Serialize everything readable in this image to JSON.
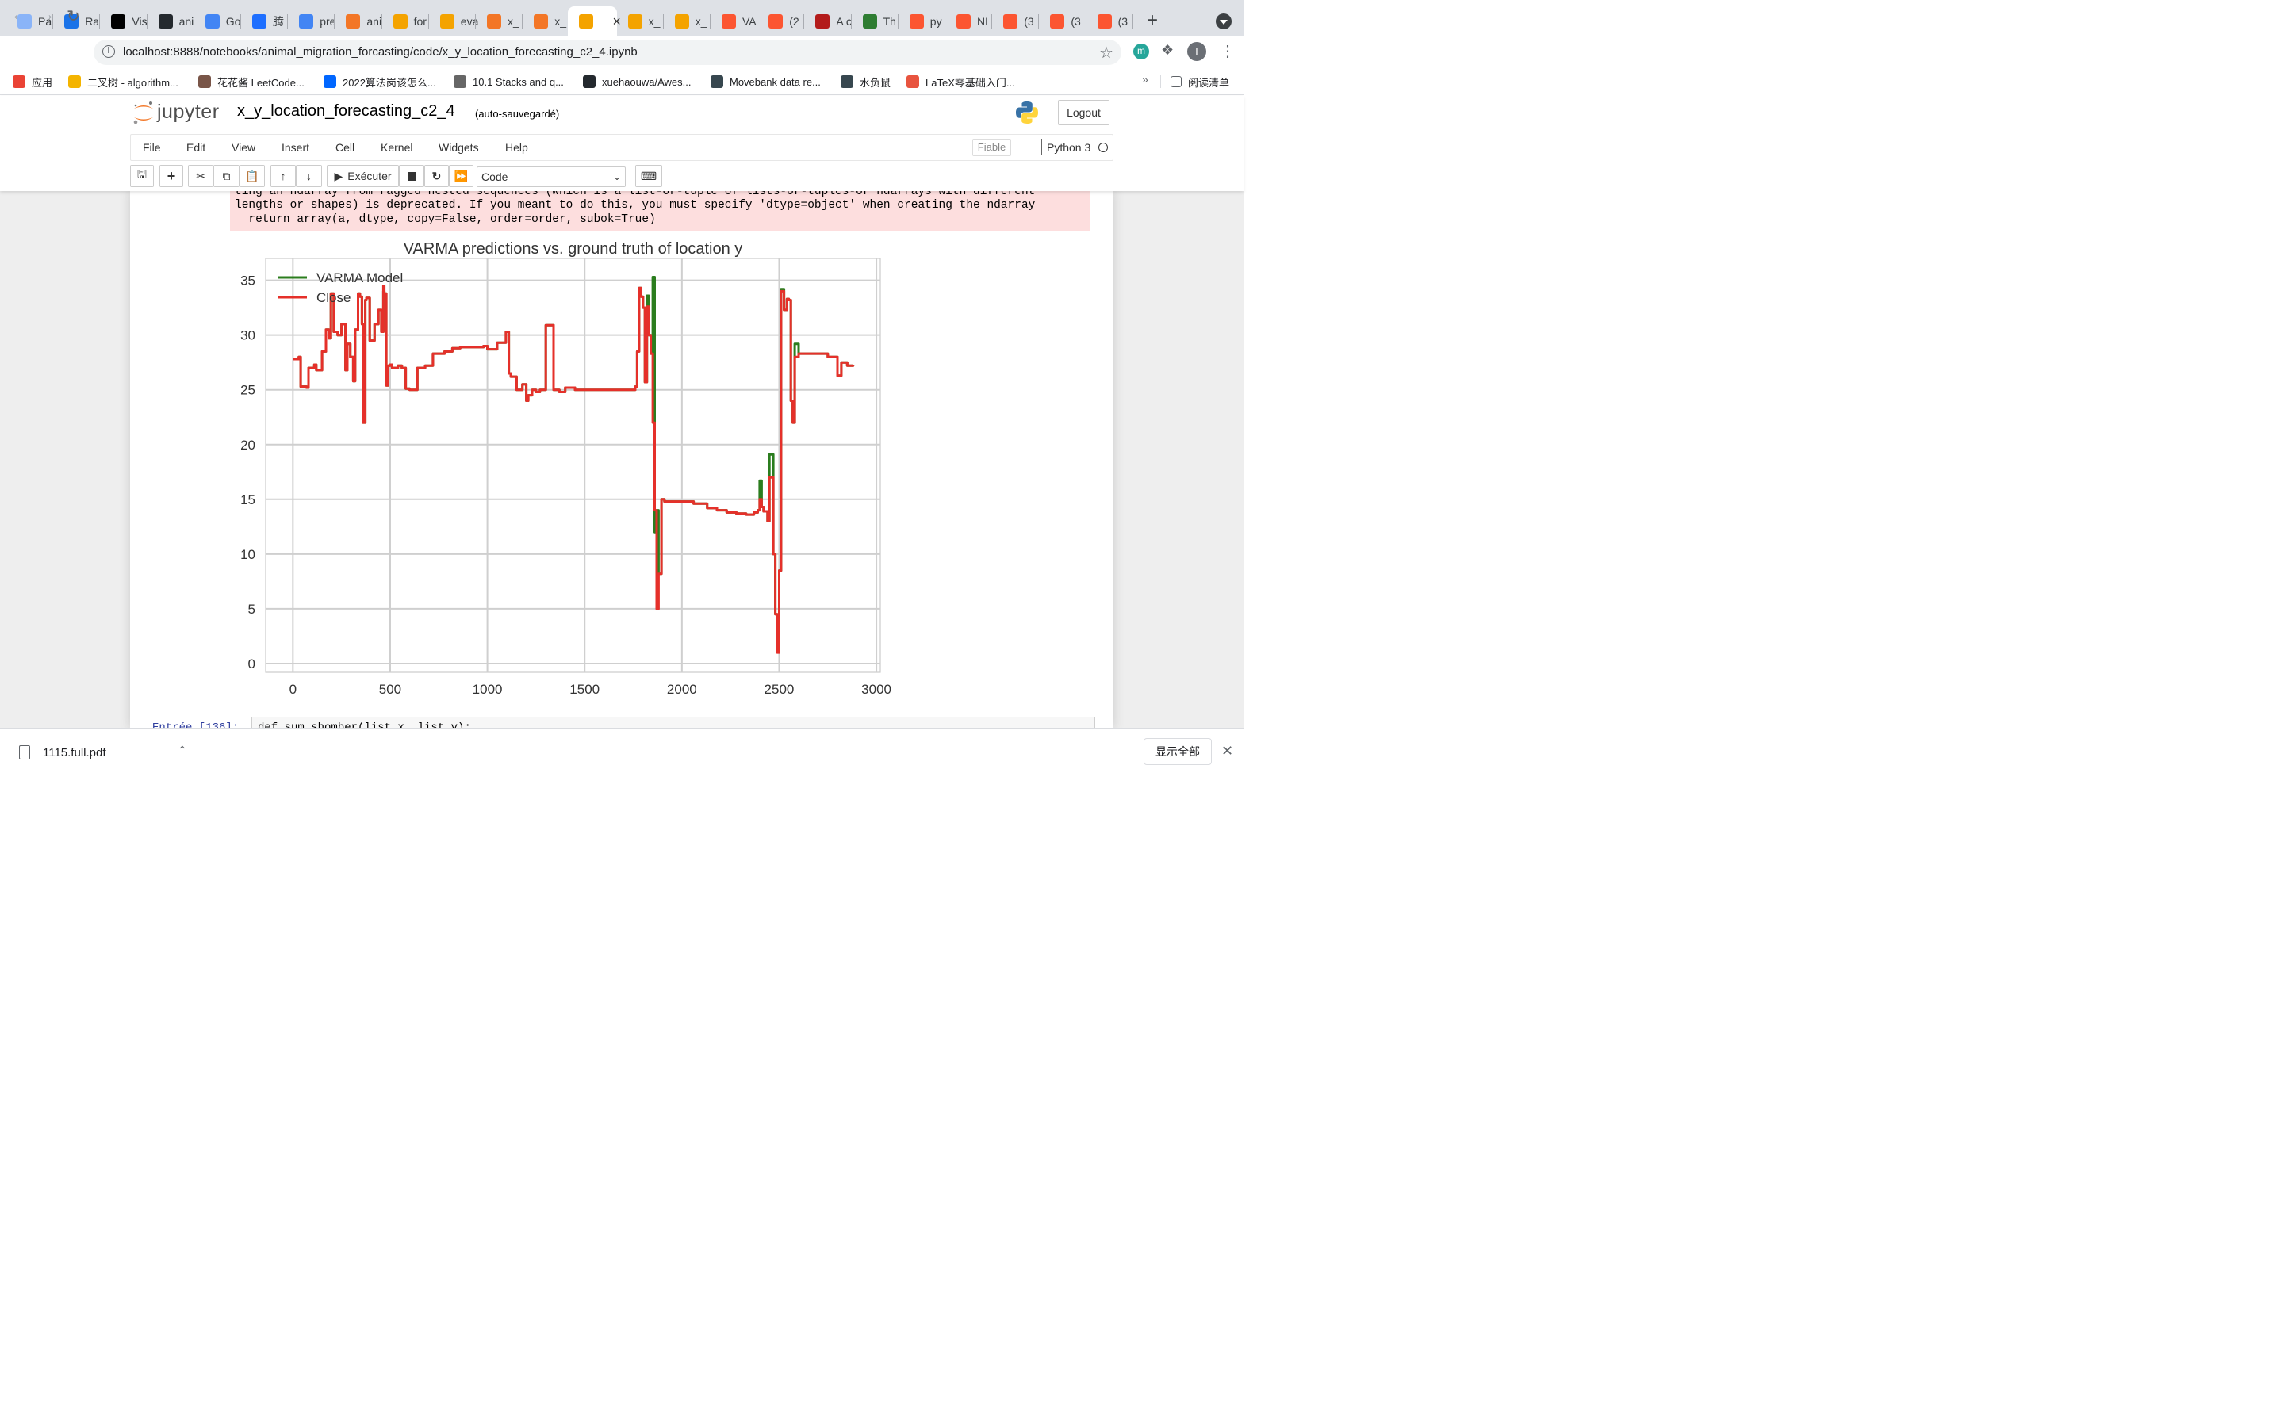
{
  "browser": {
    "tabs": [
      {
        "label": "Pa",
        "icon": "chrome-icon",
        "color": "#8ab4f8"
      },
      {
        "label": "Ra",
        "icon": "globe-icon",
        "color": "#1a73e8"
      },
      {
        "label": "Vis",
        "icon": "video-icon",
        "color": "#000000"
      },
      {
        "label": "ani",
        "icon": "github-icon",
        "color": "#24292e"
      },
      {
        "label": "Go",
        "icon": "translate-icon",
        "color": "#4285f4"
      },
      {
        "label": "腾",
        "icon": "tencent-icon",
        "color": "#1e6fff"
      },
      {
        "label": "pre",
        "icon": "docs-icon",
        "color": "#4285f4"
      },
      {
        "label": "ani",
        "icon": "jupyter-icon",
        "color": "#f37626"
      },
      {
        "label": "for",
        "icon": "notebook-icon",
        "color": "#f4a300"
      },
      {
        "label": "eva",
        "icon": "notebook-icon",
        "color": "#f4a300"
      },
      {
        "label": "x_",
        "icon": "hourglass-icon",
        "color": "#f37626"
      },
      {
        "label": "x_",
        "icon": "hourglass-icon",
        "color": "#f37626"
      },
      {
        "label": "",
        "icon": "notebook-icon",
        "color": "#f4a300"
      },
      {
        "label": "x_",
        "icon": "notebook-icon",
        "color": "#f4a300"
      },
      {
        "label": "x_",
        "icon": "notebook-icon",
        "color": "#f4a300"
      },
      {
        "label": "VA",
        "icon": "csdn-icon",
        "color": "#fc5531"
      },
      {
        "label": "(2",
        "icon": "csdn-icon",
        "color": "#fc5531"
      },
      {
        "label": "A c",
        "icon": "scholar-icon",
        "color": "#b31b1b"
      },
      {
        "label": "Th",
        "icon": "earth-icon",
        "color": "#2e7d32"
      },
      {
        "label": "py",
        "icon": "csdn-icon",
        "color": "#fc5531"
      },
      {
        "label": "NL",
        "icon": "csdn-icon",
        "color": "#fc5531"
      },
      {
        "label": "(3",
        "icon": "csdn-icon",
        "color": "#fc5531"
      },
      {
        "label": "(3",
        "icon": "csdn-icon",
        "color": "#fc5531"
      },
      {
        "label": "(3",
        "icon": "csdn-icon",
        "color": "#fc5531"
      }
    ],
    "url": "localhost:8888/notebooks/animal_migration_forcasting/code/x_y_location_forecasting_c2_4.ipynb",
    "extension_letter": "m",
    "profile_letter": "T",
    "bookmarks": [
      {
        "label": "应用",
        "icon": "apps-grid-icon",
        "color": "#ea4335"
      },
      {
        "label": "二叉树 - algorithm...",
        "icon": "emoji-icon",
        "color": "#f4b400"
      },
      {
        "label": "花花酱 LeetCode...",
        "icon": "photo-icon",
        "color": "#795548"
      },
      {
        "label": "2022算法岗该怎么...",
        "icon": "zhihu-icon",
        "color": "#0066ff"
      },
      {
        "label": "10.1 Stacks and q...",
        "icon": "w-icon",
        "color": "#666666"
      },
      {
        "label": "xuehaouwa/Awes...",
        "icon": "github-icon",
        "color": "#24292e"
      },
      {
        "label": "Movebank data re...",
        "icon": "paw-icon",
        "color": "#37474f"
      },
      {
        "label": "水负鼠",
        "icon": "paw-icon",
        "color": "#37474f"
      },
      {
        "label": "LaTeX零基础入门...",
        "icon": "jian-icon",
        "color": "#e8543f"
      }
    ],
    "bookmarks_more": "»",
    "reading_list": "阅读清单"
  },
  "jupyter": {
    "logo_text": "jupyter",
    "notebook_name": "x_y_location_forecasting_c2_4",
    "autosave": "(auto-sauvegardé)",
    "logout": "Logout",
    "menus": [
      "File",
      "Edit",
      "View",
      "Insert",
      "Cell",
      "Kernel",
      "Widgets",
      "Help"
    ],
    "trusted": "Fiable",
    "kernel": "Python 3",
    "run_label": "Exécuter",
    "cell_type": "Code"
  },
  "output": {
    "stderr_lines": [
      "ting an ndarray from ragged nested sequences (which is a list-or-tuple of lists-or-tuples-or ndarrays with different",
      "lengths or shapes) is deprecated. If you meant to do this, you must specify 'dtype=object' when creating the ndarray",
      "  return array(a, dtype, copy=False, order=order, subok=True)"
    ]
  },
  "next_cell": {
    "prompt": "Entrée [136]:",
    "code": "def sum_shomber(list_x, list_y):"
  },
  "downloads": {
    "file": "1115.full.pdf",
    "show_all": "显示全部"
  },
  "chart_data": {
    "type": "line",
    "title": "VARMA predictions vs. ground truth of location y",
    "xlabel": "",
    "ylabel": "",
    "xlim": [
      -140,
      3020
    ],
    "ylim": [
      -0.8,
      37
    ],
    "xticks": [
      0,
      500,
      1000,
      1500,
      2000,
      2500,
      3000
    ],
    "yticks": [
      0,
      5,
      10,
      15,
      20,
      25,
      30,
      35
    ],
    "grid": true,
    "legend_position": "top-left",
    "series": [
      {
        "name": "VARMA Model",
        "color": "#2b7d1e",
        "x": [
          0,
          30,
          40,
          70,
          80,
          110,
          120,
          150,
          170,
          185,
          195,
          210,
          230,
          250,
          270,
          280,
          295,
          310,
          320,
          335,
          345,
          355,
          360,
          372,
          378,
          395,
          420,
          440,
          455,
          465,
          470,
          480,
          490,
          500,
          510,
          540,
          560,
          580,
          600,
          640,
          680,
          720,
          780,
          820,
          860,
          920,
          980,
          1000,
          1050,
          1095,
          1110,
          1120,
          1150,
          1180,
          1200,
          1210,
          1230,
          1250,
          1270,
          1300,
          1340,
          1370,
          1400,
          1450,
          1500,
          1550,
          1600,
          1650,
          1700,
          1740,
          1760,
          1770,
          1780,
          1790,
          1800,
          1810,
          1820,
          1830,
          1840,
          1850,
          1860,
          1870,
          1880,
          1895,
          1910,
          1960,
          2010,
          2060,
          2100,
          2130,
          2180,
          2230,
          2280,
          2330,
          2370,
          2390,
          2400,
          2410,
          2420,
          2440,
          2450,
          2470,
          2480,
          2490,
          2500,
          2510,
          2525,
          2540,
          2550,
          2560,
          2570,
          2580,
          2600,
          2650,
          2700,
          2750,
          2780,
          2800,
          2820,
          2850,
          2880
        ],
        "values": [
          27.8,
          28.0,
          25.3,
          25.2,
          27.0,
          27.3,
          26.8,
          28.5,
          30.5,
          29.7,
          33.8,
          30.3,
          30.0,
          31.0,
          26.8,
          29.2,
          28.0,
          25.8,
          30.5,
          33.8,
          33.5,
          31.0,
          22.0,
          33.2,
          33.4,
          29.5,
          31.0,
          32.3,
          30.3,
          34.0,
          33.8,
          25.4,
          27.2,
          27.3,
          27.0,
          27.2,
          27.0,
          25.1,
          25.0,
          27.0,
          27.2,
          28.3,
          28.5,
          28.8,
          28.9,
          28.9,
          29.0,
          28.7,
          29.3,
          30.3,
          26.5,
          26.2,
          25.0,
          25.5,
          24.0,
          24.5,
          25.0,
          24.8,
          25.0,
          30.9,
          25.0,
          24.8,
          25.2,
          25.0,
          25.0,
          25.0,
          25.0,
          25.0,
          25.0,
          25.0,
          25.3,
          28.5,
          34.3,
          33.5,
          32.5,
          25.7,
          33.6,
          30.0,
          28.3,
          35.3,
          12.0,
          14.0,
          8.2,
          15.0,
          14.8,
          14.8,
          14.8,
          14.6,
          14.6,
          14.2,
          14.0,
          13.8,
          13.7,
          13.6,
          13.8,
          14.0,
          16.7,
          14.3,
          13.9,
          13.0,
          19.1,
          10.0,
          4.5,
          2.0,
          8.5,
          34.2,
          32.3,
          33.3,
          33.2,
          24.0,
          22.0,
          29.2,
          28.3,
          28.3,
          28.3,
          28.0,
          28.0,
          26.3,
          27.5,
          27.2,
          27.3
        ]
      },
      {
        "name": "Close",
        "color": "#e5302a",
        "x": [
          0,
          30,
          40,
          70,
          80,
          110,
          120,
          150,
          170,
          185,
          195,
          210,
          230,
          250,
          270,
          280,
          295,
          310,
          320,
          335,
          345,
          355,
          360,
          372,
          378,
          395,
          420,
          440,
          455,
          465,
          470,
          480,
          490,
          500,
          510,
          540,
          560,
          580,
          600,
          640,
          680,
          720,
          780,
          820,
          860,
          920,
          980,
          1000,
          1050,
          1095,
          1110,
          1120,
          1150,
          1180,
          1200,
          1210,
          1230,
          1250,
          1270,
          1300,
          1340,
          1370,
          1400,
          1450,
          1500,
          1550,
          1600,
          1650,
          1700,
          1740,
          1760,
          1770,
          1780,
          1790,
          1800,
          1810,
          1820,
          1830,
          1840,
          1850,
          1860,
          1870,
          1880,
          1895,
          1910,
          1960,
          2010,
          2060,
          2100,
          2130,
          2180,
          2230,
          2280,
          2330,
          2370,
          2390,
          2400,
          2410,
          2420,
          2440,
          2450,
          2470,
          2480,
          2490,
          2500,
          2510,
          2525,
          2540,
          2550,
          2560,
          2570,
          2580,
          2600,
          2650,
          2700,
          2750,
          2780,
          2800,
          2820,
          2850,
          2880
        ],
        "values": [
          27.8,
          28.0,
          25.3,
          25.2,
          27.0,
          27.3,
          26.8,
          28.5,
          30.5,
          29.7,
          33.8,
          30.3,
          30.0,
          31.0,
          26.8,
          29.2,
          28.0,
          25.8,
          30.5,
          33.8,
          33.5,
          31.0,
          22.0,
          33.2,
          33.4,
          29.5,
          31.0,
          32.3,
          30.3,
          34.5,
          33.8,
          25.4,
          27.2,
          27.3,
          27.0,
          27.2,
          27.0,
          25.1,
          25.0,
          27.0,
          27.2,
          28.3,
          28.5,
          28.8,
          28.9,
          28.9,
          29.0,
          28.7,
          29.3,
          30.3,
          26.5,
          26.2,
          25.0,
          25.5,
          24.0,
          24.5,
          25.0,
          24.8,
          25.0,
          30.9,
          25.0,
          24.8,
          25.2,
          25.0,
          25.0,
          25.0,
          25.0,
          25.0,
          25.0,
          25.0,
          25.3,
          28.5,
          34.3,
          33.5,
          32.5,
          25.7,
          32.6,
          30.0,
          28.3,
          22.0,
          14.0,
          5.0,
          8.2,
          15.0,
          14.8,
          14.8,
          14.8,
          14.6,
          14.6,
          14.2,
          14.0,
          13.8,
          13.7,
          13.6,
          13.8,
          14.0,
          15.0,
          14.3,
          13.9,
          13.0,
          17.0,
          10.0,
          4.5,
          1.0,
          8.5,
          34.0,
          32.3,
          33.3,
          33.2,
          24.0,
          22.0,
          28.0,
          28.3,
          28.3,
          28.3,
          28.0,
          28.0,
          26.3,
          27.5,
          27.2,
          27.3
        ]
      }
    ]
  }
}
